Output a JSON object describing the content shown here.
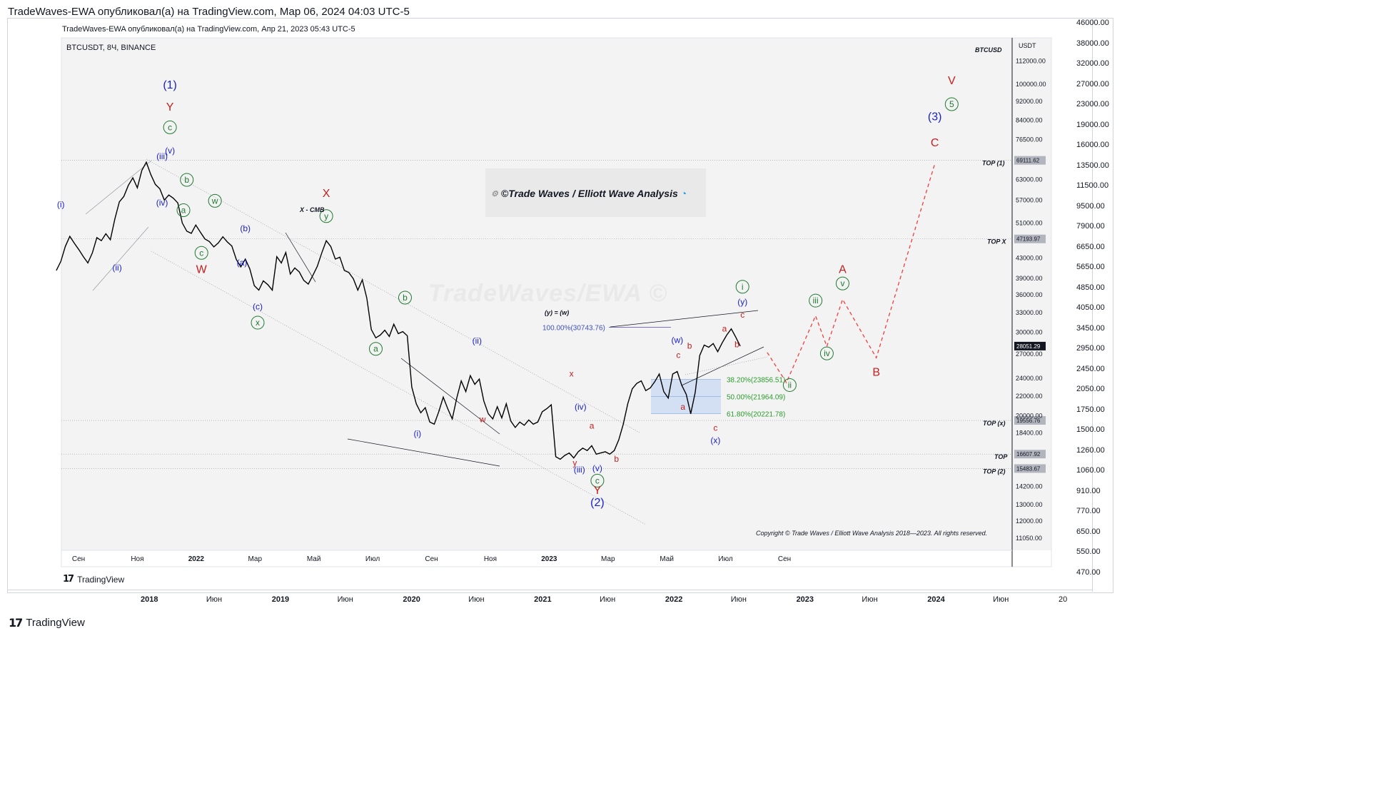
{
  "outer_header": "TradeWaves-EWA опубликовал(а) на TradingView.com, Мар 06, 2024 04:03 UTC-5",
  "inner_header": "TradeWaves-EWA опубликовал(а) на TradingView.com, Апр 21, 2023 05:43 UTC-5",
  "branding": {
    "outer": "TradingView",
    "inner": "TradingView"
  },
  "outer_axis": {
    "price_labels": [
      "46000.00",
      "38000.00",
      "32000.00",
      "27000.00",
      "23000.00",
      "19000.00",
      "16000.00",
      "13500.00",
      "11500.00",
      "9500.00",
      "7900.00",
      "6650.00",
      "5650.00",
      "4850.00",
      "4050.00",
      "3450.00",
      "2950.00",
      "2450.00",
      "2050.00",
      "1750.00",
      "1500.00",
      "1260.00",
      "1060.00",
      "910.00",
      "770.00",
      "650.00",
      "550.00",
      "470.00"
    ],
    "time_labels": [
      "2018",
      "Июн",
      "2019",
      "Июн",
      "2020",
      "Июн",
      "2021",
      "Июн",
      "2022",
      "Июн",
      "2023",
      "Июн",
      "2024",
      "Июн",
      "20"
    ]
  },
  "chart_data": {
    "type": "line",
    "symbol": "BTCUSDT, 8Ч, BINANCE",
    "symbol_tag": "BTCUSD",
    "currency": "USDT",
    "watermark_title": "©Trade Waves / Elliott Wave Analysis",
    "watermark_big": "TradeWaves/EWA ©",
    "copyright": "Copyright © Trade Waves / Elliott Wave Analysis 2018—2023. All rights reserved.",
    "scale": "log",
    "ylim": [
      10500,
      125000
    ],
    "y_ticks": [
      "112000.00",
      "100000.00",
      "92000.00",
      "84000.00",
      "76500.00",
      "63000.00",
      "57000.00",
      "51000.00",
      "43000.00",
      "39000.00",
      "36000.00",
      "33000.00",
      "30000.00",
      "27000.00",
      "24000.00",
      "22000.00",
      "20000.00",
      "18400.00",
      "14200.00",
      "13000.00",
      "12000.00",
      "11050.00"
    ],
    "x_ticks": [
      "Сен",
      "Ноя",
      "2022",
      "Мар",
      "Май",
      "Июл",
      "Сен",
      "Ноя",
      "2023",
      "Мар",
      "Май",
      "Июл",
      "Сен"
    ],
    "price_series": {
      "start": "2021-08-01",
      "step_days": 4,
      "values": [
        40500,
        42300,
        45500,
        47800,
        46200,
        44800,
        43300,
        42000,
        44100,
        47500,
        46800,
        48400,
        47000,
        52000,
        56500,
        58000,
        61200,
        63500,
        60500,
        65800,
        68500,
        64500,
        61500,
        60200,
        57000,
        58400,
        57500,
        56200,
        51000,
        49000,
        48500,
        50500,
        48800,
        47200,
        46600,
        45400,
        46300,
        47700,
        46500,
        45600,
        42700,
        41200,
        42800,
        40800,
        37600,
        36800,
        38500,
        37800,
        36800,
        43300,
        42000,
        44200,
        39800,
        41000,
        40200,
        38600,
        37900,
        39500,
        41300,
        44100,
        46800,
        45500,
        42800,
        43200,
        40500,
        40100,
        38900,
        36800,
        38700,
        35400,
        30400,
        29200,
        29600,
        30300,
        29400,
        31200,
        29800,
        30100,
        29500,
        23000,
        21200,
        20300,
        20800,
        19400,
        19200,
        20400,
        21900,
        20700,
        19700,
        21800,
        23700,
        22500,
        24300,
        23300,
        23900,
        21500,
        20200,
        19700,
        20900,
        19800,
        21200,
        19500,
        18900,
        19400,
        19100,
        19600,
        19200,
        19400,
        20400,
        20700,
        21100,
        16400,
        16200,
        16500,
        16700,
        16300,
        16800,
        17100,
        16900,
        17300,
        16600,
        16700,
        16800,
        16600,
        16900,
        17800,
        19200,
        21200,
        22800,
        23400,
        23700,
        22600,
        22900,
        23600,
        24500,
        22500,
        21800,
        24500,
        24800,
        23200,
        22200,
        20200,
        22400,
        26800,
        28200,
        27900,
        28400,
        27300,
        28500,
        29600,
        30500,
        29300,
        28050
      ]
    },
    "fib_levels": [
      {
        "label": "100.00%(30743.76)",
        "pct": 100.0,
        "price": 30743.76
      },
      {
        "label": "38.20%(23856.51)",
        "pct": 38.2,
        "price": 23856.51
      },
      {
        "label": "50.00%(21964.09)",
        "pct": 50.0,
        "price": 21964.09
      },
      {
        "label": "61.80%(20221.78)",
        "pct": 61.8,
        "price": 20221.78
      }
    ],
    "horizontal_levels": [
      {
        "name": "TOP (1)",
        "price": 69111.62,
        "label": "69111.62"
      },
      {
        "name": "TOP X",
        "price": 47193.97,
        "label": "47193.97"
      },
      {
        "name": "TOP (x)",
        "price": 19556.76,
        "label": "19556.76"
      },
      {
        "name": "TOP",
        "price": 16607.92,
        "label": "16607.92"
      },
      {
        "name": "TOP (2)",
        "price": 15483.67,
        "label": "15483.67"
      }
    ],
    "last_price": {
      "price": 28051.29,
      "label": "28051.29"
    },
    "projection": [
      {
        "date": "2023-04-25",
        "price": 27200
      },
      {
        "date": "2023-05-12",
        "price": 23500
      },
      {
        "date": "2023-06-07",
        "price": 32500
      },
      {
        "date": "2023-06-17",
        "price": 28000
      },
      {
        "date": "2023-07-01",
        "price": 35200
      },
      {
        "date": "2023-07-31",
        "price": 26500
      },
      {
        "date": "2023-09-21",
        "price": 68000
      }
    ],
    "annotations": {
      "legend_eq": "(y) = (w)",
      "x_cmb": "X - CMB"
    },
    "wave_labels": [
      {
        "text": "(1)",
        "color": "blue",
        "date": "2021-11-10",
        "price": 98000
      },
      {
        "text": "Y",
        "color": "red",
        "date": "2021-11-10",
        "price": 88000
      },
      {
        "text": "c",
        "color": "green",
        "circled": true,
        "date": "2021-11-10",
        "price": 80000
      },
      {
        "text": "(v)",
        "color": "blue",
        "date": "2021-11-10",
        "price": 71500
      },
      {
        "text": "(iii)",
        "color": "blue",
        "date": "2021-11-03",
        "price": 69500
      },
      {
        "text": "b",
        "color": "green",
        "circled": true,
        "date": "2021-11-25",
        "price": 62000
      },
      {
        "text": "(iv)",
        "color": "blue",
        "date": "2021-11-03",
        "price": 55500
      },
      {
        "text": "a",
        "color": "green",
        "circled": true,
        "date": "2021-11-22",
        "price": 53500
      },
      {
        "text": "w",
        "color": "green",
        "circled": true,
        "date": "2021-12-20",
        "price": 56000
      },
      {
        "text": "(i)",
        "color": "blue",
        "date": "2021-08-05",
        "price": 55000
      },
      {
        "text": "(ii)",
        "color": "blue",
        "date": "2021-09-24",
        "price": 40500
      },
      {
        "text": "c",
        "color": "green",
        "circled": true,
        "date": "2021-12-08",
        "price": 43500
      },
      {
        "text": "W",
        "color": "red",
        "date": "2021-12-08",
        "price": 40000
      },
      {
        "text": "(b)",
        "color": "blue",
        "date": "2022-01-16",
        "price": 49000
      },
      {
        "text": "(a)",
        "color": "blue",
        "date": "2022-01-13",
        "price": 41500
      },
      {
        "text": "(c)",
        "color": "blue",
        "date": "2022-01-27",
        "price": 33500
      },
      {
        "text": "x",
        "color": "green",
        "circled": true,
        "date": "2022-01-27",
        "price": 31000
      },
      {
        "text": "X",
        "color": "red",
        "date": "2022-03-29",
        "price": 57800
      },
      {
        "text": "y",
        "color": "green",
        "circled": true,
        "date": "2022-03-29",
        "price": 52000
      },
      {
        "text": "b",
        "color": "green",
        "circled": true,
        "date": "2022-06-07",
        "price": 35000
      },
      {
        "text": "a",
        "color": "green",
        "circled": true,
        "date": "2022-05-12",
        "price": 27300
      },
      {
        "text": "(ii)",
        "color": "blue",
        "date": "2022-08-10",
        "price": 28400
      },
      {
        "text": "(i)",
        "color": "blue",
        "date": "2022-06-18",
        "price": 18100
      },
      {
        "text": "w",
        "color": "red",
        "date": "2022-08-15",
        "price": 19400
      },
      {
        "text": "x",
        "color": "red",
        "date": "2022-11-02",
        "price": 24200
      },
      {
        "text": "(iv)",
        "color": "blue",
        "date": "2022-11-10",
        "price": 20600
      },
      {
        "text": "a",
        "color": "red",
        "date": "2022-11-20",
        "price": 18800
      },
      {
        "text": "y",
        "color": "red",
        "date": "2022-11-05",
        "price": 15700
      },
      {
        "text": "(iii)",
        "color": "blue",
        "date": "2022-11-09",
        "price": 15200
      },
      {
        "text": "(v)",
        "color": "blue",
        "date": "2022-11-25",
        "price": 15300
      },
      {
        "text": "c",
        "color": "green",
        "circled": true,
        "date": "2022-11-25",
        "price": 14400
      },
      {
        "text": "Y",
        "color": "red",
        "date": "2022-11-25",
        "price": 13700
      },
      {
        "text": "(2)",
        "color": "blue",
        "date": "2022-11-25",
        "price": 12900
      },
      {
        "text": "b",
        "color": "red",
        "date": "2022-12-12",
        "price": 16000
      },
      {
        "text": "(w)",
        "color": "blue",
        "date": "2023-02-04",
        "price": 28500
      },
      {
        "text": "c",
        "color": "red",
        "date": "2023-02-05",
        "price": 26500
      },
      {
        "text": "b",
        "color": "red",
        "date": "2023-02-15",
        "price": 27700
      },
      {
        "text": "a",
        "color": "red",
        "date": "2023-02-09",
        "price": 20600
      },
      {
        "text": "c",
        "color": "red",
        "date": "2023-03-10",
        "price": 18600
      },
      {
        "text": "(x)",
        "color": "blue",
        "date": "2023-03-10",
        "price": 17500
      },
      {
        "text": "a",
        "color": "red",
        "date": "2023-03-18",
        "price": 30100
      },
      {
        "text": "b",
        "color": "red",
        "date": "2023-03-29",
        "price": 27900
      },
      {
        "text": "i",
        "color": "green",
        "circled": true,
        "date": "2023-04-03",
        "price": 36900
      },
      {
        "text": "(y)",
        "color": "blue",
        "date": "2023-04-03",
        "price": 34300
      },
      {
        "text": "c",
        "color": "red",
        "date": "2023-04-03",
        "price": 32200
      },
      {
        "text": "ii",
        "color": "green",
        "circled": true,
        "date": "2023-05-15",
        "price": 22900
      },
      {
        "text": "iii",
        "color": "green",
        "circled": true,
        "date": "2023-06-07",
        "price": 34500
      },
      {
        "text": "iv",
        "color": "green",
        "circled": true,
        "date": "2023-06-17",
        "price": 26700
      },
      {
        "text": "A",
        "color": "red",
        "date": "2023-07-01",
        "price": 40000
      },
      {
        "text": "v",
        "color": "green",
        "circled": true,
        "date": "2023-07-01",
        "price": 37500
      },
      {
        "text": "B",
        "color": "red",
        "date": "2023-07-31",
        "price": 24300
      },
      {
        "text": "C",
        "color": "red",
        "date": "2023-09-21",
        "price": 74000
      },
      {
        "text": "(3)",
        "color": "blue",
        "date": "2023-09-21",
        "price": 84000
      },
      {
        "text": "5",
        "color": "green",
        "circled": true,
        "date": "2023-10-06",
        "price": 89500
      },
      {
        "text": "V",
        "color": "red",
        "date": "2023-10-06",
        "price": 100000
      }
    ]
  },
  "colors": {
    "blue": "#1a21c9",
    "red": "#c41e1e",
    "green": "#1f7a2f",
    "fib_green": "#2a9b2a",
    "projection": "#ef4040",
    "fib_box": "#c8daf4",
    "price_badge": "#131722",
    "level_badge": "#b2b5be"
  }
}
